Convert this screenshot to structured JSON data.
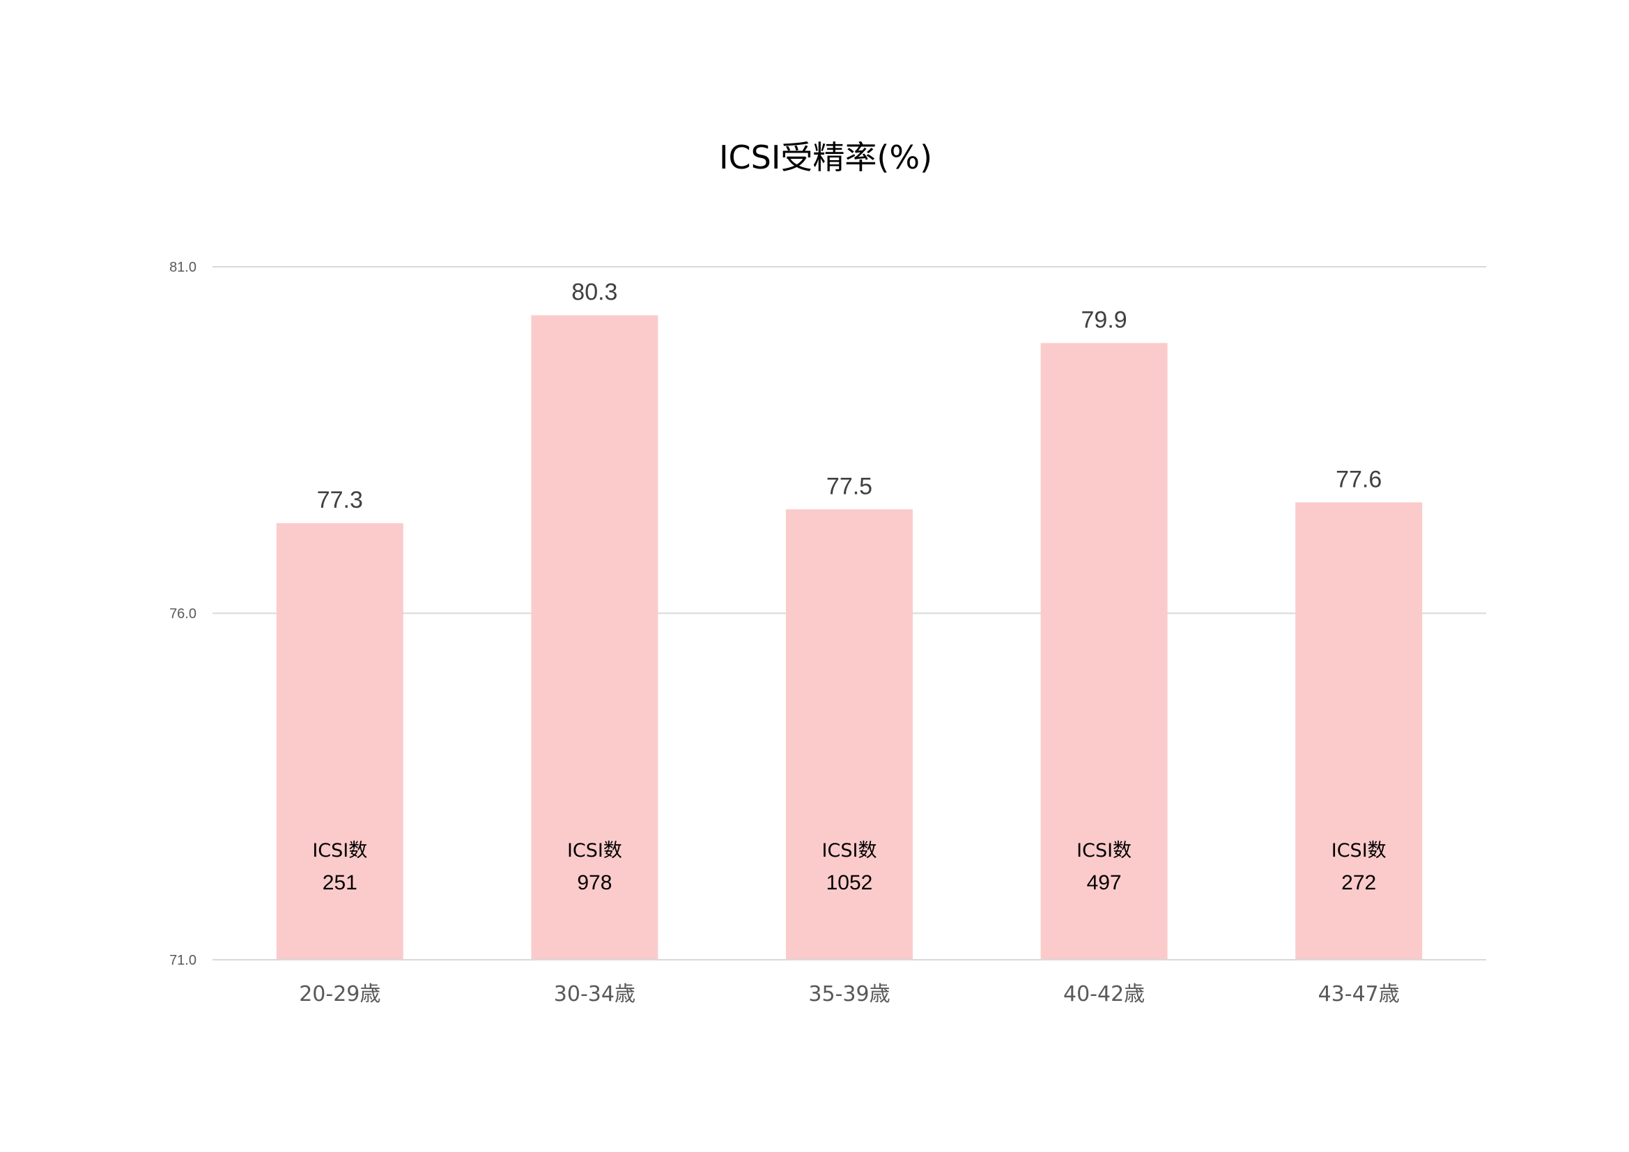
{
  "chart_data": {
    "type": "bar",
    "title": "ICSI受精率(%)",
    "xlabel": "",
    "ylabel": "",
    "ylim": [
      71.0,
      81.0
    ],
    "yticks": [
      "81.0",
      "76.0",
      "71.0"
    ],
    "ytick_values": [
      81.0,
      76.0,
      71.0
    ],
    "grid": true,
    "legend": "none",
    "bar_color": "#fbcbcb",
    "categories": [
      "20-29歳",
      "30-34歳",
      "35-39歳",
      "40-42歳",
      "43-47歳"
    ],
    "values": [
      77.3,
      80.3,
      77.5,
      79.9,
      77.6
    ],
    "value_labels": [
      "77.3",
      "80.3",
      "77.5",
      "79.9",
      "77.6"
    ],
    "count_label": "ICSI数",
    "counts": [
      "251",
      "978",
      "1052",
      "497",
      "272"
    ]
  }
}
